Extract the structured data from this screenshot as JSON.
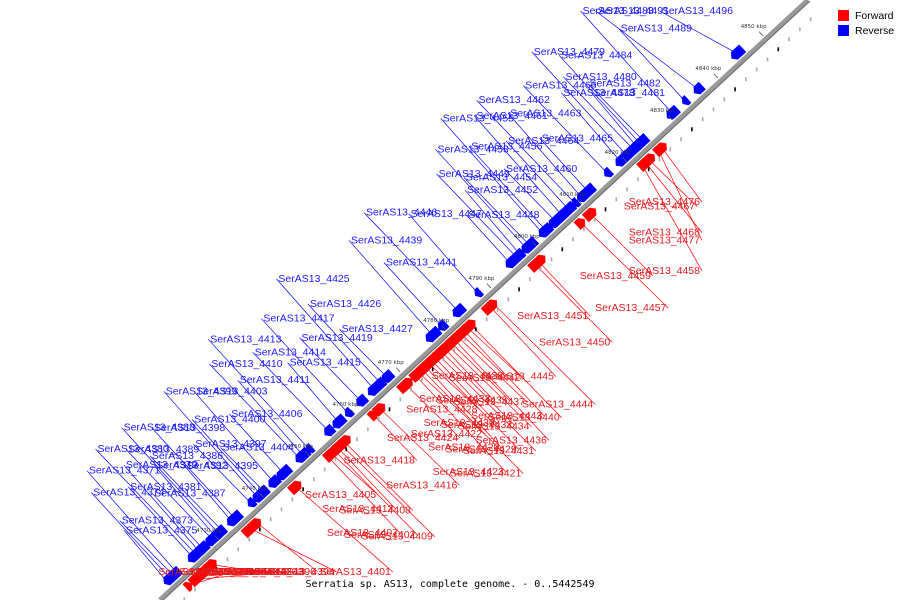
{
  "caption": "Serratia sp. AS13, complete genome. - 0..5442549",
  "legend": [
    {
      "label": "Forward",
      "color": "#ff0000"
    },
    {
      "label": "Reverse",
      "color": "#0000ff"
    }
  ],
  "colors": {
    "forward": "#ff0000",
    "reverse": "#0000ff",
    "backbone": "#999999",
    "label_fwd": "#e41a1c",
    "label_rev": "#1a1aff"
  },
  "ticks": [
    "4730 kbp",
    "4740 kbp",
    "4750 kbp",
    "4760 kbp",
    "4770 kbp",
    "4780 kbp",
    "4790 kbp",
    "4800 kbp",
    "4810 kbp",
    "4820 kbp",
    "4830 kbp",
    "4840 kbp",
    "4850 kbp"
  ],
  "forward_genes": [
    {
      "name": "SerAS13_4385",
      "t": 0.035
    },
    {
      "name": "SerAS13_4384",
      "t": 0.045
    },
    {
      "name": "SerAS13_4383",
      "t": 0.055
    },
    {
      "name": "SerAS13_4393",
      "t": 0.06
    },
    {
      "name": "SerAS13_4391",
      "t": 0.065
    },
    {
      "name": "SerAS13_4390",
      "t": 0.07
    },
    {
      "name": "SerAS13_4377",
      "t": 0.05
    },
    {
      "name": "SerAS13_4376",
      "t": 0.058
    },
    {
      "name": "SerAS13_4396",
      "t": 0.14
    },
    {
      "name": "SerAS13_4394",
      "t": 0.13
    },
    {
      "name": "SerAS13_4401",
      "t": 0.2
    },
    {
      "name": "SerAS13_4407",
      "t": 0.25
    },
    {
      "name": "SerAS13_4405",
      "t": 0.255
    },
    {
      "name": "SerAS13_4402",
      "t": 0.26
    },
    {
      "name": "SerAS13_4412",
      "t": 0.265
    },
    {
      "name": "SerAS13_4409",
      "t": 0.27
    },
    {
      "name": "SerAS13_4408",
      "t": 0.275
    },
    {
      "name": "SerAS13_4418",
      "t": 0.32
    },
    {
      "name": "SerAS13_4416",
      "t": 0.33
    },
    {
      "name": "SerAS13_4424",
      "t": 0.37
    },
    {
      "name": "SerAS13_4423",
      "t": 0.385
    },
    {
      "name": "SerAS13_4422",
      "t": 0.39
    },
    {
      "name": "SerAS13_4421",
      "t": 0.395
    },
    {
      "name": "SerAS13_4420",
      "t": 0.4
    },
    {
      "name": "SerAS13_4428",
      "t": 0.405
    },
    {
      "name": "SerAS13_4429",
      "t": 0.41
    },
    {
      "name": "SerAS13_4430",
      "t": 0.415
    },
    {
      "name": "SerAS13_4431",
      "t": 0.42
    },
    {
      "name": "SerAS13_4432",
      "t": 0.425
    },
    {
      "name": "SerAS13_4433",
      "t": 0.43
    },
    {
      "name": "SerAS13_4434",
      "t": 0.435
    },
    {
      "name": "SerAS13_4435",
      "t": 0.44
    },
    {
      "name": "SerAS13_4436",
      "t": 0.445
    },
    {
      "name": "SerAS13_4437",
      "t": 0.45
    },
    {
      "name": "SerAS13_4438",
      "t": 0.455
    },
    {
      "name": "SerAS13_4443",
      "t": 0.46
    },
    {
      "name": "SerAS13_4442",
      "t": 0.465
    },
    {
      "name": "SerAS13_4440",
      "t": 0.47
    },
    {
      "name": "SerAS13_4445",
      "t": 0.5
    },
    {
      "name": "SerAS13_4444",
      "t": 0.505
    },
    {
      "name": "SerAS13_4451",
      "t": 0.575
    },
    {
      "name": "SerAS13_4450",
      "t": 0.57
    },
    {
      "name": "SerAS13_4457",
      "t": 0.64
    },
    {
      "name": "SerAS13_4459",
      "t": 0.655
    },
    {
      "name": "SerAS13_4458",
      "t": 0.735
    },
    {
      "name": "SerAS13_4468",
      "t": 0.74
    },
    {
      "name": "SerAS13_4467",
      "t": 0.745
    },
    {
      "name": "SerAS13_4477",
      "t": 0.76
    },
    {
      "name": "SerAS13_4476",
      "t": 0.765
    }
  ],
  "reverse_genes": [
    {
      "name": "SerAS13_4381",
      "t": 0.06
    },
    {
      "name": "SerAS13_4380",
      "t": 0.065
    },
    {
      "name": "SerAS13_4379",
      "t": 0.07
    },
    {
      "name": "SerAS13_4388",
      "t": 0.1
    },
    {
      "name": "SerAS13_4386",
      "t": 0.105
    },
    {
      "name": "SerAS13_4375",
      "t": 0.02
    },
    {
      "name": "SerAS13_4374",
      "t": 0.025
    },
    {
      "name": "SerAS13_4373",
      "t": 0.03
    },
    {
      "name": "SerAS13_4371",
      "t": 0.035
    },
    {
      "name": "SerAS13_4387",
      "t": 0.075
    },
    {
      "name": "SerAS13_4389",
      "t": 0.09
    },
    {
      "name": "SerAS13_4395",
      "t": 0.12
    },
    {
      "name": "SerAS13_4398",
      "t": 0.125
    },
    {
      "name": "SerAS13_4392",
      "t": 0.095
    },
    {
      "name": "SerAS13_4397",
      "t": 0.15
    },
    {
      "name": "SerAS13_4403",
      "t": 0.185
    },
    {
      "name": "SerAS13_4399",
      "t": 0.16
    },
    {
      "name": "SerAS13_4400",
      "t": 0.165
    },
    {
      "name": "SerAS13_4410",
      "t": 0.225
    },
    {
      "name": "SerAS13_4404",
      "t": 0.17
    },
    {
      "name": "SerAS13_4413",
      "t": 0.24
    },
    {
      "name": "SerAS13_4406",
      "t": 0.2
    },
    {
      "name": "SerAS13_4411",
      "t": 0.23
    },
    {
      "name": "SerAS13_4414",
      "t": 0.27
    },
    {
      "name": "SerAS13_4415",
      "t": 0.285
    },
    {
      "name": "SerAS13_4417",
      "t": 0.3
    },
    {
      "name": "SerAS13_4419",
      "t": 0.32
    },
    {
      "name": "SerAS13_4425",
      "t": 0.34
    },
    {
      "name": "SerAS13_4426",
      "t": 0.35
    },
    {
      "name": "SerAS13_4427",
      "t": 0.36
    },
    {
      "name": "SerAS13_4439",
      "t": 0.43
    },
    {
      "name": "SerAS13_4441",
      "t": 0.445
    },
    {
      "name": "SerAS13_4446",
      "t": 0.47
    },
    {
      "name": "SerAS13_4447",
      "t": 0.5
    },
    {
      "name": "SerAS13_4448",
      "t": 0.55
    },
    {
      "name": "SerAS13_4449",
      "t": 0.56
    },
    {
      "name": "SerAS13_4452",
      "t": 0.565
    },
    {
      "name": "SerAS13_4455",
      "t": 0.6
    },
    {
      "name": "SerAS13_4456",
      "t": 0.605
    },
    {
      "name": "SerAS13_4453",
      "t": 0.575
    },
    {
      "name": "SerAS13_4454",
      "t": 0.58
    },
    {
      "name": "SerAS13_4460",
      "t": 0.62
    },
    {
      "name": "SerAS13_4461",
      "t": 0.63
    },
    {
      "name": "SerAS13_4464",
      "t": 0.64
    },
    {
      "name": "SerAS13_4462",
      "t": 0.65
    },
    {
      "name": "SerAS13_4463",
      "t": 0.66
    },
    {
      "name": "SerAS13_4465",
      "t": 0.67
    },
    {
      "name": "SerAS13_4466",
      "t": 0.7
    },
    {
      "name": "SerAS13_4478",
      "t": 0.72
    },
    {
      "name": "SerAS13_4480",
      "t": 0.74
    },
    {
      "name": "SerAS13_4479",
      "t": 0.73
    },
    {
      "name": "SerAS13_4481",
      "t": 0.745
    },
    {
      "name": "SerAS13_4484",
      "t": 0.75
    },
    {
      "name": "SerAS13_4482",
      "t": 0.755
    },
    {
      "name": "SerAS13_4483",
      "t": 0.8
    },
    {
      "name": "SerAS13_4489",
      "t": 0.82
    },
    {
      "name": "SerAS13_4491",
      "t": 0.84
    },
    {
      "name": "SerAS13_4496",
      "t": 0.9
    }
  ]
}
